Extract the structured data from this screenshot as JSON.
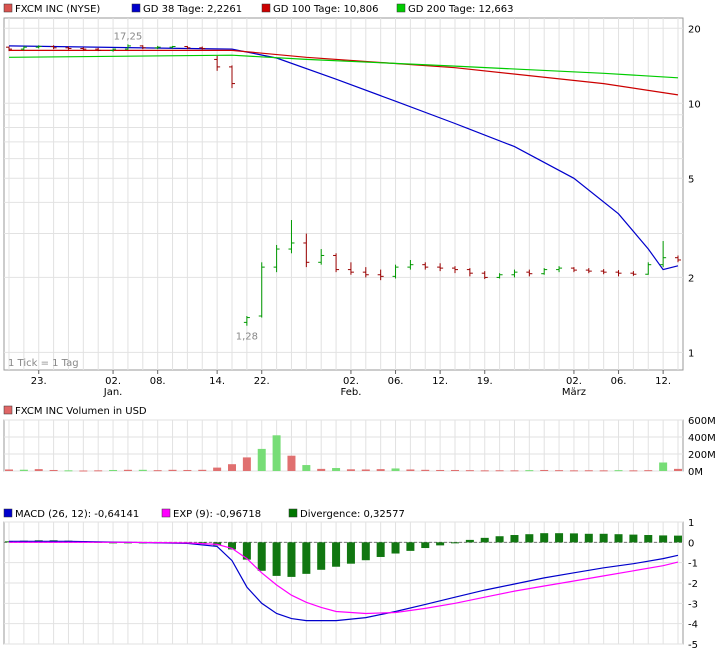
{
  "price_panel": {
    "legend": [
      {
        "label": "FXCM INC (NYSE)",
        "color": "#d9534f"
      },
      {
        "label": "GD 38 Tage: 2,2261",
        "color": "#0000cc"
      },
      {
        "label": "GD 100 Tage: 10,806",
        "color": "#cc0000"
      },
      {
        "label": "GD 200 Tage: 12,663",
        "color": "#00cc00"
      }
    ],
    "tick_note": "1 Tick = 1 Tag",
    "max_label": "17,25",
    "min_label": "1,28"
  },
  "volume_panel": {
    "legend": [
      {
        "label": "FXCM INC Volumen in USD",
        "color": "#e06666"
      }
    ]
  },
  "macd_panel": {
    "legend": [
      {
        "label": "MACD (26, 12): -0,64141",
        "color": "#0000cc"
      },
      {
        "label": "EXP (9): -0,96718",
        "color": "#ff00ff"
      },
      {
        "label": "Divergence: 0,32577",
        "color": "#007700"
      }
    ]
  },
  "chart_data": [
    {
      "type": "candlestick",
      "name": "price",
      "y_scale": "log",
      "ylim": [
        0.85,
        22
      ],
      "y_ticks": [
        {
          "v": 20,
          "label": "20"
        },
        {
          "v": 10,
          "label": "10"
        },
        {
          "v": 5,
          "label": "5"
        },
        {
          "v": 2,
          "label": "2"
        },
        {
          "v": 1,
          "label": "1"
        }
      ],
      "x_labels": [
        {
          "i": 2,
          "label": "23.",
          "sub": ""
        },
        {
          "i": 7,
          "label": "02.",
          "sub": "Jan."
        },
        {
          "i": 10,
          "label": "08.",
          "sub": ""
        },
        {
          "i": 14,
          "label": "14.",
          "sub": ""
        },
        {
          "i": 17,
          "label": "22.",
          "sub": ""
        },
        {
          "i": 23,
          "label": "02.",
          "sub": "Feb."
        },
        {
          "i": 26,
          "label": "06.",
          "sub": ""
        },
        {
          "i": 29,
          "label": "12.",
          "sub": ""
        },
        {
          "i": 32,
          "label": "19.",
          "sub": ""
        },
        {
          "i": 38,
          "label": "02.",
          "sub": "März"
        },
        {
          "i": 41,
          "label": "06.",
          "sub": ""
        },
        {
          "i": 44,
          "label": "12.",
          "sub": ""
        }
      ],
      "days": 46,
      "candles": [
        [
          0,
          16.8,
          16.9,
          16.2,
          16.5
        ],
        [
          1,
          16.5,
          17.0,
          16.3,
          16.8
        ],
        [
          2,
          16.8,
          17.1,
          16.6,
          16.9
        ],
        [
          3,
          16.9,
          17.1,
          16.5,
          16.7
        ],
        [
          4,
          16.7,
          16.9,
          16.4,
          16.6
        ],
        [
          5,
          16.6,
          16.8,
          16.3,
          16.5
        ],
        [
          6,
          16.5,
          16.7,
          16.2,
          16.3
        ],
        [
          7,
          16.3,
          16.6,
          16.1,
          16.5
        ],
        [
          8,
          16.5,
          17.25,
          16.4,
          17.0
        ],
        [
          9,
          17.0,
          17.1,
          16.5,
          16.7
        ],
        [
          10,
          16.7,
          17.0,
          16.5,
          16.8
        ],
        [
          11,
          16.8,
          17.0,
          16.6,
          16.9
        ],
        [
          12,
          16.9,
          17.0,
          16.5,
          16.7
        ],
        [
          13,
          16.7,
          16.9,
          16.4,
          16.6
        ],
        [
          14,
          15.0,
          15.5,
          13.5,
          14.0
        ],
        [
          15,
          14.0,
          14.2,
          11.5,
          12.0
        ],
        [
          16,
          1.32,
          1.4,
          1.28,
          1.38
        ],
        [
          17,
          1.4,
          2.3,
          1.38,
          2.2
        ],
        [
          18,
          2.2,
          2.7,
          2.1,
          2.6
        ],
        [
          19,
          2.6,
          3.4,
          2.5,
          2.75
        ],
        [
          20,
          2.75,
          3.0,
          2.2,
          2.3
        ],
        [
          21,
          2.3,
          2.6,
          2.25,
          2.45
        ],
        [
          22,
          2.45,
          2.5,
          2.1,
          2.15
        ],
        [
          23,
          2.15,
          2.3,
          2.05,
          2.1
        ],
        [
          24,
          2.1,
          2.2,
          2.0,
          2.05
        ],
        [
          25,
          2.05,
          2.15,
          1.95,
          2.02
        ],
        [
          26,
          2.02,
          2.25,
          1.98,
          2.2
        ],
        [
          27,
          2.2,
          2.35,
          2.15,
          2.25
        ],
        [
          28,
          2.25,
          2.3,
          2.15,
          2.2
        ],
        [
          29,
          2.2,
          2.28,
          2.12,
          2.18
        ],
        [
          30,
          2.18,
          2.22,
          2.08,
          2.15
        ],
        [
          31,
          2.15,
          2.18,
          2.02,
          2.08
        ],
        [
          32,
          2.08,
          2.12,
          1.97,
          2.0
        ],
        [
          33,
          2.0,
          2.08,
          1.98,
          2.05
        ],
        [
          34,
          2.05,
          2.15,
          2.0,
          2.1
        ],
        [
          35,
          2.1,
          2.15,
          2.02,
          2.07
        ],
        [
          36,
          2.07,
          2.18,
          2.05,
          2.15
        ],
        [
          37,
          2.15,
          2.22,
          2.1,
          2.18
        ],
        [
          38,
          2.18,
          2.2,
          2.1,
          2.14
        ],
        [
          39,
          2.14,
          2.18,
          2.08,
          2.12
        ],
        [
          40,
          2.12,
          2.16,
          2.06,
          2.1
        ],
        [
          41,
          2.1,
          2.14,
          2.02,
          2.08
        ],
        [
          42,
          2.08,
          2.12,
          2.03,
          2.06
        ],
        [
          43,
          2.06,
          2.3,
          2.05,
          2.25
        ],
        [
          44,
          2.25,
          2.8,
          2.2,
          2.4
        ],
        [
          45,
          2.4,
          2.45,
          2.3,
          2.35
        ]
      ],
      "series": [
        {
          "name": "GD 38 Tage",
          "color": "#0000cc",
          "points": [
            [
              0,
              17.0
            ],
            [
              15,
              16.5
            ],
            [
              18,
              15.2
            ],
            [
              22,
              12.5
            ],
            [
              26,
              10.2
            ],
            [
              30,
              8.3
            ],
            [
              34,
              6.7
            ],
            [
              38,
              5.0
            ],
            [
              41,
              3.6
            ],
            [
              43,
              2.6
            ],
            [
              44,
              2.15
            ],
            [
              45,
              2.2261
            ]
          ]
        },
        {
          "name": "GD 100 Tage",
          "color": "#cc0000",
          "points": [
            [
              0,
              16.3
            ],
            [
              15,
              16.3
            ],
            [
              20,
              15.3
            ],
            [
              30,
              13.9
            ],
            [
              40,
              12.0
            ],
            [
              45,
              10.806
            ]
          ]
        },
        {
          "name": "GD 200 Tage",
          "color": "#00cc00",
          "points": [
            [
              0,
              15.3
            ],
            [
              15,
              15.6
            ],
            [
              20,
              15.0
            ],
            [
              30,
              14.1
            ],
            [
              40,
              13.2
            ],
            [
              45,
              12.663
            ]
          ]
        }
      ]
    },
    {
      "type": "bar",
      "name": "volume",
      "ylim": [
        0,
        600
      ],
      "y_ticks": [
        {
          "v": 600,
          "label": "600M"
        },
        {
          "v": 400,
          "label": "400M"
        },
        {
          "v": 200,
          "label": "200M"
        },
        {
          "v": 0,
          "label": "0M"
        }
      ],
      "values": [
        [
          0,
          18,
          "r"
        ],
        [
          1,
          15,
          "g"
        ],
        [
          2,
          22,
          "r"
        ],
        [
          3,
          12,
          "r"
        ],
        [
          4,
          8,
          "g"
        ],
        [
          5,
          6,
          "r"
        ],
        [
          6,
          8,
          "r"
        ],
        [
          7,
          12,
          "g"
        ],
        [
          8,
          14,
          "r"
        ],
        [
          9,
          14,
          "g"
        ],
        [
          10,
          10,
          "r"
        ],
        [
          11,
          14,
          "r"
        ],
        [
          12,
          12,
          "r"
        ],
        [
          13,
          14,
          "r"
        ],
        [
          14,
          40,
          "r"
        ],
        [
          15,
          80,
          "r"
        ],
        [
          16,
          160,
          "r"
        ],
        [
          17,
          260,
          "g"
        ],
        [
          18,
          420,
          "g"
        ],
        [
          19,
          180,
          "r"
        ],
        [
          20,
          70,
          "g"
        ],
        [
          21,
          25,
          "r"
        ],
        [
          22,
          35,
          "g"
        ],
        [
          23,
          20,
          "r"
        ],
        [
          24,
          18,
          "r"
        ],
        [
          25,
          22,
          "r"
        ],
        [
          26,
          30,
          "g"
        ],
        [
          27,
          18,
          "r"
        ],
        [
          28,
          14,
          "r"
        ],
        [
          29,
          12,
          "r"
        ],
        [
          30,
          12,
          "r"
        ],
        [
          31,
          10,
          "r"
        ],
        [
          32,
          8,
          "r"
        ],
        [
          33,
          9,
          "r"
        ],
        [
          34,
          8,
          "r"
        ],
        [
          35,
          10,
          "g"
        ],
        [
          36,
          12,
          "r"
        ],
        [
          37,
          10,
          "r"
        ],
        [
          38,
          8,
          "r"
        ],
        [
          39,
          9,
          "r"
        ],
        [
          40,
          8,
          "r"
        ],
        [
          41,
          10,
          "g"
        ],
        [
          42,
          8,
          "r"
        ],
        [
          43,
          10,
          "r"
        ],
        [
          44,
          100,
          "g"
        ],
        [
          45,
          25,
          "r"
        ]
      ]
    },
    {
      "type": "line+bar",
      "name": "macd",
      "ylim": [
        -5,
        1
      ],
      "y_ticks": [
        {
          "v": 1,
          "label": "1"
        },
        {
          "v": 0,
          "label": "0"
        },
        {
          "v": -1,
          "label": "-1"
        },
        {
          "v": -2,
          "label": "-2"
        },
        {
          "v": -3,
          "label": "-3"
        },
        {
          "v": -4,
          "label": "-4"
        },
        {
          "v": -5,
          "label": "-5"
        }
      ],
      "divergence": [
        [
          0,
          0.05
        ],
        [
          1,
          0.08
        ],
        [
          2,
          0.1
        ],
        [
          3,
          0.1
        ],
        [
          4,
          0.08
        ],
        [
          5,
          0.06
        ],
        [
          6,
          0.02
        ],
        [
          7,
          -0.02
        ],
        [
          8,
          -0.04
        ],
        [
          9,
          -0.05
        ],
        [
          10,
          -0.04
        ],
        [
          11,
          -0.03
        ],
        [
          12,
          -0.02
        ],
        [
          13,
          -0.02
        ],
        [
          14,
          -0.15
        ],
        [
          15,
          -0.35
        ],
        [
          16,
          -0.85
        ],
        [
          17,
          -1.4
        ],
        [
          18,
          -1.65
        ],
        [
          19,
          -1.7
        ],
        [
          20,
          -1.55
        ],
        [
          21,
          -1.35
        ],
        [
          22,
          -1.2
        ],
        [
          23,
          -1.05
        ],
        [
          24,
          -0.88
        ],
        [
          25,
          -0.72
        ],
        [
          26,
          -0.55
        ],
        [
          27,
          -0.42
        ],
        [
          28,
          -0.28
        ],
        [
          29,
          -0.15
        ],
        [
          30,
          0.0
        ],
        [
          31,
          0.12
        ],
        [
          32,
          0.22
        ],
        [
          33,
          0.3
        ],
        [
          34,
          0.36
        ],
        [
          35,
          0.4
        ],
        [
          36,
          0.45
        ],
        [
          37,
          0.45
        ],
        [
          38,
          0.44
        ],
        [
          39,
          0.42
        ],
        [
          40,
          0.42
        ],
        [
          41,
          0.4
        ],
        [
          42,
          0.38
        ],
        [
          43,
          0.36
        ],
        [
          44,
          0.34
        ],
        [
          45,
          0.33
        ]
      ],
      "series": [
        {
          "name": "MACD",
          "color": "#0000cc",
          "points": [
            [
              0,
              0.05
            ],
            [
              4,
              0.05
            ],
            [
              8,
              0.0
            ],
            [
              12,
              -0.05
            ],
            [
              14,
              -0.2
            ],
            [
              15,
              -0.9
            ],
            [
              16,
              -2.2
            ],
            [
              17,
              -3.0
            ],
            [
              18,
              -3.5
            ],
            [
              19,
              -3.75
            ],
            [
              20,
              -3.85
            ],
            [
              22,
              -3.85
            ],
            [
              24,
              -3.7
            ],
            [
              26,
              -3.4
            ],
            [
              28,
              -3.05
            ],
            [
              30,
              -2.7
            ],
            [
              32,
              -2.35
            ],
            [
              34,
              -2.05
            ],
            [
              36,
              -1.75
            ],
            [
              38,
              -1.5
            ],
            [
              40,
              -1.25
            ],
            [
              42,
              -1.05
            ],
            [
              44,
              -0.8
            ],
            [
              45,
              -0.64
            ]
          ]
        },
        {
          "name": "EXP",
          "color": "#ff00ff",
          "points": [
            [
              0,
              0.0
            ],
            [
              8,
              0.0
            ],
            [
              12,
              -0.03
            ],
            [
              14,
              -0.1
            ],
            [
              15,
              -0.3
            ],
            [
              16,
              -0.8
            ],
            [
              17,
              -1.5
            ],
            [
              18,
              -2.1
            ],
            [
              19,
              -2.6
            ],
            [
              20,
              -2.95
            ],
            [
              21,
              -3.2
            ],
            [
              22,
              -3.4
            ],
            [
              24,
              -3.5
            ],
            [
              26,
              -3.45
            ],
            [
              28,
              -3.25
            ],
            [
              30,
              -3.0
            ],
            [
              32,
              -2.7
            ],
            [
              34,
              -2.4
            ],
            [
              36,
              -2.15
            ],
            [
              38,
              -1.9
            ],
            [
              40,
              -1.65
            ],
            [
              42,
              -1.4
            ],
            [
              44,
              -1.15
            ],
            [
              45,
              -0.97
            ]
          ]
        }
      ]
    }
  ]
}
